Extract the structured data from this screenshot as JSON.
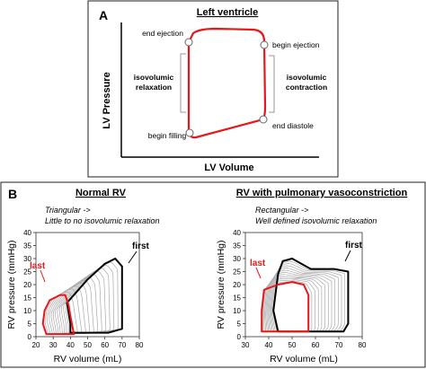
{
  "panelA": {
    "label": "A",
    "title": "Left ventricle",
    "ylabel": "LV Pressure",
    "xlabel": "LV Volume",
    "events": {
      "end_ejection": "end ejection",
      "begin_ejection": "begin ejection",
      "end_diastole": "end diastole",
      "begin_filling": "begin filling"
    },
    "phase_left": [
      "isovolumic",
      "relaxation"
    ],
    "phase_right": [
      "isovolumic",
      "contraction"
    ]
  },
  "panelB": {
    "label": "B",
    "left": {
      "title": "Normal RV",
      "note1": "Triangular  ->",
      "note2": "Little to no isovolumic relaxation",
      "first_label": "first",
      "last_label": "last"
    },
    "right": {
      "title": "RV with pulmonary vasoconstriction",
      "note1": "Rectangular  ->",
      "note2": "Well defined isovolumic relaxation",
      "first_label": "first",
      "last_label": "last"
    }
  },
  "chart_data": [
    {
      "type": "line",
      "title": "Normal RV",
      "xlabel": "RV volume (mL)",
      "ylabel": "RV pressure (mmHg)",
      "xlim": [
        20,
        80
      ],
      "ylim": [
        0,
        40
      ],
      "xticks": [
        "20",
        "30",
        "40",
        "50",
        "60",
        "70",
        "80"
      ],
      "yticks": [
        "0",
        "5",
        "10",
        "15",
        "20",
        "25",
        "30",
        "35",
        "40"
      ],
      "series": [
        {
          "name": "first",
          "color": "#000000",
          "points": [
            [
              40,
              1.5
            ],
            [
              62,
              1.5
            ],
            [
              70,
              3
            ],
            [
              70,
              27
            ],
            [
              66,
              30
            ],
            [
              60,
              28
            ],
            [
              50,
              22
            ],
            [
              42,
              16
            ],
            [
              38,
              13
            ],
            [
              40,
              5
            ],
            [
              40,
              1.5
            ]
          ]
        },
        {
          "name": "last",
          "color": "#e8161b",
          "points": [
            [
              26,
              1
            ],
            [
              42,
              1
            ],
            [
              40,
              8
            ],
            [
              39,
              12
            ],
            [
              37,
              16
            ],
            [
              34,
              16
            ],
            [
              28,
              14
            ],
            [
              25,
              10
            ],
            [
              24,
              5
            ],
            [
              26,
              1
            ]
          ]
        }
      ]
    },
    {
      "type": "line",
      "title": "RV with pulmonary vasoconstriction",
      "xlabel": "RV volume (mL)",
      "ylabel": "RV pressure (mmHg)",
      "xlim": [
        30,
        80
      ],
      "ylim": [
        0,
        40
      ],
      "xticks": [
        "30",
        "40",
        "50",
        "60",
        "70",
        "80"
      ],
      "yticks": [
        "0",
        "5",
        "10",
        "15",
        "20",
        "25",
        "30",
        "35",
        "40"
      ],
      "series": [
        {
          "name": "first",
          "color": "#000000",
          "points": [
            [
              44,
              2
            ],
            [
              72,
              2
            ],
            [
              74,
              5
            ],
            [
              74,
              25
            ],
            [
              68,
              26
            ],
            [
              58,
              26
            ],
            [
              50,
              30
            ],
            [
              46,
              29
            ],
            [
              44,
              24
            ],
            [
              42,
              10
            ],
            [
              44,
              2
            ]
          ]
        },
        {
          "name": "last",
          "color": "#e8161b",
          "points": [
            [
              37,
              2
            ],
            [
              57,
              2
            ],
            [
              57,
              16
            ],
            [
              55,
              20
            ],
            [
              50,
              21
            ],
            [
              44,
              20
            ],
            [
              38,
              18
            ],
            [
              37,
              10
            ],
            [
              37,
              2
            ]
          ]
        }
      ]
    }
  ]
}
